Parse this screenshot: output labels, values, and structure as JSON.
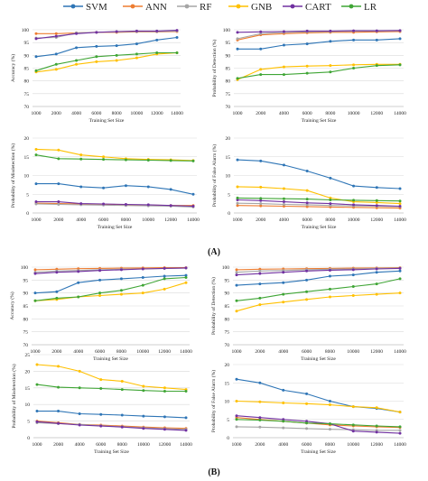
{
  "legend": {
    "items": [
      {
        "name": "SVM",
        "color": "#2e75b6"
      },
      {
        "name": "ANN",
        "color": "#ed7d31"
      },
      {
        "name": "RF",
        "color": "#a5a5a5"
      },
      {
        "name": "GNB",
        "color": "#ffc000"
      },
      {
        "name": "CART",
        "color": "#7030a0"
      },
      {
        "name": "LR",
        "color": "#3fa535"
      }
    ]
  },
  "panel_labels": {
    "A": "(A)",
    "B": "(B)"
  },
  "chart_data": [
    {
      "id": "A-accuracy",
      "type": "line",
      "x": [
        1000,
        2000,
        4000,
        6000,
        8000,
        10000,
        12000,
        14000
      ],
      "ylim": [
        70,
        100
      ],
      "yticks": [
        70,
        75,
        80,
        85,
        90,
        95,
        100
      ],
      "ylabel": "Accuracy (%)",
      "xlabel": "Training Set Size",
      "series": [
        {
          "name": "SVM",
          "values": [
            89.5,
            90.5,
            93,
            93.5,
            93.8,
            94.5,
            96,
            97
          ]
        },
        {
          "name": "ANN",
          "values": [
            98.5,
            98.5,
            98.8,
            99,
            99,
            99.2,
            99.2,
            99.3
          ]
        },
        {
          "name": "RF",
          "values": [
            96.8,
            97,
            98.8,
            99,
            99.2,
            99.3,
            99.3,
            99.5
          ]
        },
        {
          "name": "GNB",
          "values": [
            83.5,
            84.5,
            86.5,
            87.5,
            88,
            89,
            90.5,
            91
          ]
        },
        {
          "name": "CART",
          "values": [
            96.5,
            97.5,
            98.5,
            99,
            99.3,
            99.5,
            99.5,
            99.8
          ]
        },
        {
          "name": "LR",
          "values": [
            84,
            86.5,
            88,
            89.5,
            90,
            90.5,
            91,
            91
          ]
        }
      ]
    },
    {
      "id": "A-detection",
      "type": "line",
      "x": [
        1000,
        2000,
        4000,
        6000,
        8000,
        10000,
        12000,
        14000
      ],
      "ylim": [
        70,
        100
      ],
      "yticks": [
        70,
        75,
        80,
        85,
        90,
        95,
        100
      ],
      "ylabel": "Probability of Detection (%)",
      "xlabel": "Training Set Size",
      "series": [
        {
          "name": "SVM",
          "values": [
            92.5,
            92.5,
            94,
            94.5,
            95.5,
            96,
            96,
            96.5
          ]
        },
        {
          "name": "ANN",
          "values": [
            96,
            98,
            98.5,
            98.8,
            99,
            99,
            99.2,
            99.3
          ]
        },
        {
          "name": "RF",
          "values": [
            96.5,
            98.5,
            99,
            99.2,
            99.3,
            99.5,
            99.5,
            99.6
          ]
        },
        {
          "name": "GNB",
          "values": [
            80.5,
            84.5,
            85.5,
            85.8,
            86,
            86.3,
            86.5,
            86.5
          ]
        },
        {
          "name": "CART",
          "values": [
            99,
            99.2,
            99.3,
            99.5,
            99.5,
            99.6,
            99.6,
            99.7
          ]
        },
        {
          "name": "LR",
          "values": [
            81,
            82.5,
            82.5,
            83,
            83.5,
            85,
            86,
            86.3
          ]
        }
      ]
    },
    {
      "id": "A-misdetection",
      "type": "line",
      "x": [
        1000,
        2000,
        4000,
        6000,
        8000,
        10000,
        12000,
        14000
      ],
      "ylim": [
        0,
        20
      ],
      "yticks": [
        0,
        5,
        10,
        15,
        20
      ],
      "ylabel": "Probability of Misdetection (%)",
      "xlabel": "Training Set Size",
      "series": [
        {
          "name": "SVM",
          "values": [
            7.8,
            7.8,
            7,
            6.7,
            7.3,
            7,
            6.3,
            5
          ]
        },
        {
          "name": "ANN",
          "values": [
            2.6,
            2.5,
            2.4,
            2.3,
            2.2,
            2.1,
            2,
            2
          ]
        },
        {
          "name": "RF",
          "values": [
            2.4,
            2.3,
            2.2,
            2.1,
            2,
            1.9,
            1.8,
            1.6
          ]
        },
        {
          "name": "GNB",
          "values": [
            17,
            16.8,
            15.5,
            15,
            14.5,
            14.3,
            14.2,
            14
          ]
        },
        {
          "name": "CART",
          "values": [
            3,
            3,
            2.5,
            2.4,
            2.3,
            2.2,
            2,
            1.8
          ]
        },
        {
          "name": "LR",
          "values": [
            15.5,
            14.5,
            14.4,
            14.3,
            14.2,
            14.1,
            14,
            13.9
          ]
        }
      ]
    },
    {
      "id": "A-falsealarm",
      "type": "line",
      "x": [
        1000,
        2000,
        4000,
        6000,
        8000,
        10000,
        12000,
        14000
      ],
      "ylim": [
        0,
        20
      ],
      "yticks": [
        0,
        5,
        10,
        15,
        20
      ],
      "ylabel": "Probability of False Alarm (%)",
      "xlabel": "Training Set Size",
      "series": [
        {
          "name": "SVM",
          "values": [
            14.2,
            13.9,
            12.8,
            11.2,
            9.3,
            7.2,
            6.8,
            6.5
          ]
        },
        {
          "name": "ANN",
          "values": [
            2,
            1.9,
            1.8,
            1.7,
            1.6,
            1.5,
            1.4,
            1.3
          ]
        },
        {
          "name": "RF",
          "values": [
            2.6,
            2.5,
            2.3,
            2.2,
            2,
            1.9,
            1.8,
            1.7
          ]
        },
        {
          "name": "GNB",
          "values": [
            7,
            6.9,
            6.5,
            6,
            4,
            3,
            2.8,
            2.5
          ]
        },
        {
          "name": "CART",
          "values": [
            3.5,
            3.3,
            3,
            2.7,
            2.5,
            2.2,
            2,
            1.8
          ]
        },
        {
          "name": "LR",
          "values": [
            4,
            3.9,
            3.8,
            3.7,
            3.5,
            3.4,
            3.3,
            3.2
          ]
        }
      ]
    },
    {
      "id": "B-accuracy",
      "type": "line",
      "x": [
        1000,
        2000,
        4000,
        6000,
        8000,
        10000,
        12000,
        14000
      ],
      "ylim": [
        70,
        100
      ],
      "yticks": [
        70,
        75,
        80,
        85,
        90,
        95,
        100
      ],
      "ylabel": "Accuracy (%)",
      "xlabel": "Training Set Size",
      "series": [
        {
          "name": "SVM",
          "values": [
            90,
            90.5,
            94,
            95,
            95.5,
            96,
            96.5,
            96.8
          ]
        },
        {
          "name": "ANN",
          "values": [
            99,
            99.2,
            99.4,
            99.5,
            99.6,
            99.7,
            99.8,
            99.8
          ]
        },
        {
          "name": "RF",
          "values": [
            98,
            98.5,
            98.7,
            99,
            99.2,
            99.3,
            99.5,
            99.6
          ]
        },
        {
          "name": "GNB",
          "values": [
            87,
            87.5,
            88.5,
            89,
            89.5,
            90,
            91.5,
            94
          ]
        },
        {
          "name": "CART",
          "values": [
            97.5,
            98,
            98.3,
            98.7,
            99,
            99.3,
            99.5,
            99.7
          ]
        },
        {
          "name": "LR",
          "values": [
            87,
            88,
            88.5,
            90,
            91,
            93,
            95.5,
            96
          ]
        }
      ]
    },
    {
      "id": "B-detection",
      "type": "line",
      "x": [
        1000,
        2000,
        4000,
        6000,
        8000,
        10000,
        12000,
        14000
      ],
      "ylim": [
        70,
        100
      ],
      "yticks": [
        70,
        75,
        80,
        85,
        90,
        95,
        100
      ],
      "ylabel": "Probability of Detection (%)",
      "xlabel": "Training Set Size",
      "series": [
        {
          "name": "SVM",
          "values": [
            93,
            93.5,
            94,
            95,
            96.5,
            97,
            98,
            98.5
          ]
        },
        {
          "name": "ANN",
          "values": [
            99,
            99.2,
            99.3,
            99.4,
            99.5,
            99.6,
            99.7,
            99.8
          ]
        },
        {
          "name": "RF",
          "values": [
            98,
            98.5,
            98.7,
            99,
            99.2,
            99.3,
            99.5,
            99.6
          ]
        },
        {
          "name": "GNB",
          "values": [
            83,
            85.5,
            86.5,
            87.5,
            88.5,
            89,
            89.5,
            90
          ]
        },
        {
          "name": "CART",
          "values": [
            97,
            97.5,
            98,
            98.5,
            98.8,
            99,
            99.3,
            99.5
          ]
        },
        {
          "name": "LR",
          "values": [
            87,
            88,
            89.5,
            90.5,
            91.5,
            92.5,
            93.5,
            95.5
          ]
        }
      ]
    },
    {
      "id": "B-misdetection",
      "type": "line",
      "x": [
        1000,
        2000,
        4000,
        6000,
        8000,
        10000,
        12000,
        14000
      ],
      "ylim": [
        0,
        25
      ],
      "yticks": [
        0,
        5,
        10,
        15,
        20,
        25
      ],
      "ylabel": "Probability of Misdetection (%)",
      "xlabel": "Training Set Size",
      "series": [
        {
          "name": "SVM",
          "values": [
            8,
            8,
            7.2,
            7,
            6.8,
            6.5,
            6.3,
            6
          ]
        },
        {
          "name": "ANN",
          "values": [
            5,
            4.5,
            4,
            3.8,
            3.5,
            3.2,
            3,
            2.8
          ]
        },
        {
          "name": "RF",
          "values": [
            4.5,
            4.2,
            4,
            3.6,
            3.3,
            3,
            2.7,
            2.5
          ]
        },
        {
          "name": "GNB",
          "values": [
            22,
            21.5,
            20,
            17.5,
            17,
            15.5,
            15,
            14.5
          ]
        },
        {
          "name": "CART",
          "values": [
            4.8,
            4.3,
            3.8,
            3.5,
            3.2,
            2.8,
            2.5,
            2.2
          ]
        },
        {
          "name": "LR",
          "values": [
            16,
            15.2,
            15,
            14.8,
            14.5,
            14.2,
            14,
            14
          ]
        }
      ]
    },
    {
      "id": "B-falsealarm",
      "type": "line",
      "x": [
        1000,
        2000,
        4000,
        6000,
        8000,
        10000,
        12000,
        14000
      ],
      "ylim": [
        0,
        20
      ],
      "yticks": [
        0,
        5,
        10,
        15,
        20
      ],
      "ylabel": "Probability of False Alarm (%)",
      "xlabel": "Training Set Size",
      "series": [
        {
          "name": "SVM",
          "values": [
            16,
            15,
            13,
            12,
            10,
            8.5,
            8,
            7
          ]
        },
        {
          "name": "ANN",
          "values": [
            5.5,
            5,
            4.5,
            4,
            3.5,
            3.2,
            3,
            2.8
          ]
        },
        {
          "name": "RF",
          "values": [
            3,
            2.9,
            2.7,
            2.5,
            2.3,
            2.2,
            2,
            2
          ]
        },
        {
          "name": "GNB",
          "values": [
            10,
            9.8,
            9.5,
            9.3,
            9,
            8.5,
            8.2,
            7
          ]
        },
        {
          "name": "CART",
          "values": [
            6,
            5.5,
            5,
            4.5,
            3.8,
            1.8,
            1.5,
            1.2
          ]
        },
        {
          "name": "LR",
          "values": [
            5,
            4.8,
            4.5,
            4,
            3.8,
            3.5,
            3.2,
            3
          ]
        }
      ]
    }
  ]
}
